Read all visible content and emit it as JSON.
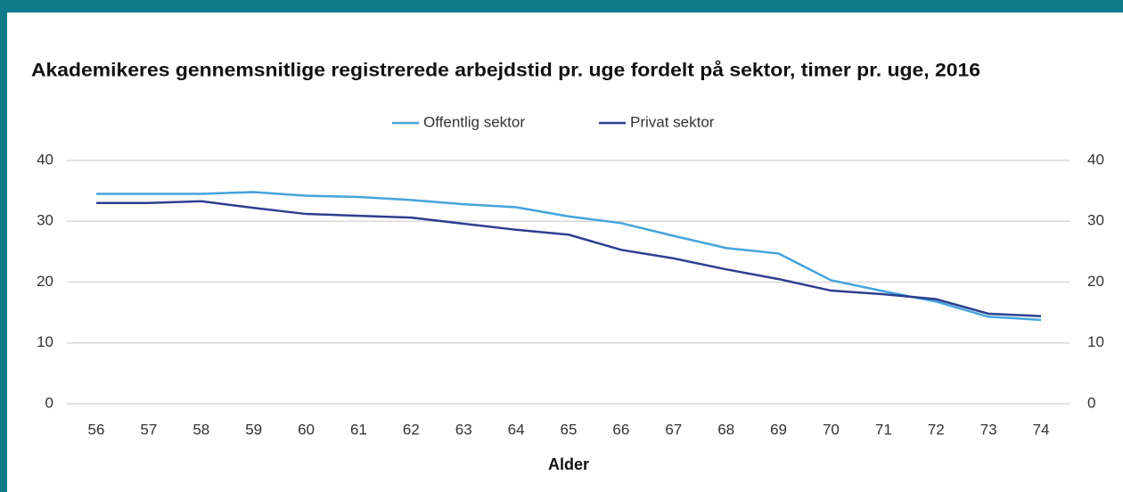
{
  "chart_data": {
    "type": "line",
    "title": "Akademikeres gennemsnitlige registrerede arbejdstid pr. uge fordelt på sektor, timer pr. uge, 2016",
    "x_label": "Alder",
    "categories": [
      "56",
      "57",
      "58",
      "59",
      "60",
      "61",
      "62",
      "63",
      "64",
      "65",
      "66",
      "67",
      "68",
      "69",
      "70",
      "71",
      "72",
      "73",
      "74"
    ],
    "series": [
      {
        "name": "Offentlig sektor",
        "color": "#45a3dc",
        "values": [
          34.5,
          34.5,
          34.5,
          34.8,
          34.2,
          34.0,
          33.5,
          32.8,
          32.3,
          30.8,
          29.7,
          27.6,
          25.6,
          24.7,
          20.3,
          18.5,
          16.8,
          14.3,
          13.8
        ]
      },
      {
        "name": "Privat sektor",
        "color": "#2e3f8f",
        "values": [
          33.0,
          33.0,
          33.3,
          32.2,
          31.2,
          30.9,
          30.6,
          29.6,
          28.6,
          27.8,
          25.3,
          23.9,
          22.1,
          20.5,
          18.6,
          18.0,
          17.2,
          14.8,
          14.4
        ]
      }
    ],
    "ylim": [
      0,
      40
    ],
    "yticks": [
      0,
      10,
      20,
      30,
      40
    ],
    "y2lim": [
      0,
      40
    ],
    "y2ticks": [
      0,
      10,
      20,
      30,
      40
    ],
    "grid": true,
    "legend": "top"
  }
}
